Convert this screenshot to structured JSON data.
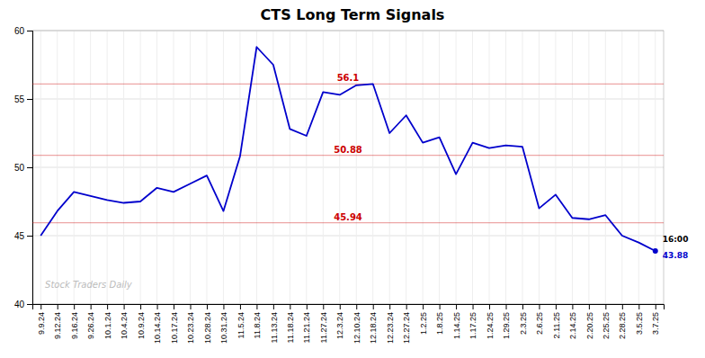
{
  "chart_data": {
    "type": "line",
    "title": "CTS Long Term Signals",
    "categories": [
      "9.9.24",
      "9.12.24",
      "9.16.24",
      "9.26.24",
      "10.1.24",
      "10.4.24",
      "10.9.24",
      "10.14.24",
      "10.17.24",
      "10.23.24",
      "10.28.24",
      "10.31.24",
      "11.5.24",
      "11.8.24",
      "11.13.24",
      "11.18.24",
      "11.21.24",
      "11.27.24",
      "12.3.24",
      "12.10.24",
      "12.18.24",
      "12.23.24",
      "12.27.24",
      "1.2.25",
      "1.8.25",
      "1.14.25",
      "1.17.25",
      "1.24.25",
      "1.29.25",
      "2.3.25",
      "2.6.25",
      "2.11.25",
      "2.14.25",
      "2.20.25",
      "2.25.25",
      "2.28.25",
      "3.5.25",
      "3.7.25"
    ],
    "values": [
      45.0,
      46.8,
      48.2,
      47.9,
      47.6,
      47.4,
      47.5,
      48.5,
      48.2,
      48.8,
      49.4,
      46.8,
      50.8,
      58.8,
      57.5,
      52.8,
      52.3,
      55.5,
      55.3,
      56.0,
      56.1,
      52.5,
      53.8,
      51.8,
      52.2,
      49.5,
      51.8,
      51.4,
      51.6,
      51.5,
      47.0,
      48.0,
      46.3,
      46.2,
      46.5,
      45.0,
      44.5,
      43.88
    ],
    "color": "#0000cc",
    "ylim": [
      40,
      60
    ],
    "yticks": [
      40,
      45,
      50,
      55,
      60
    ],
    "grid": true,
    "reference_lines": [
      {
        "value": 56.1,
        "label": "56.1",
        "color": "#cc0000"
      },
      {
        "value": 50.88,
        "label": "50.88",
        "color": "#cc0000"
      },
      {
        "value": 45.94,
        "label": "45.94",
        "color": "#cc0000"
      }
    ],
    "end_label": "16:00",
    "annotations": [
      {
        "text": "43.88",
        "value": 43.88
      }
    ],
    "watermark": "Stock Traders Daily"
  }
}
